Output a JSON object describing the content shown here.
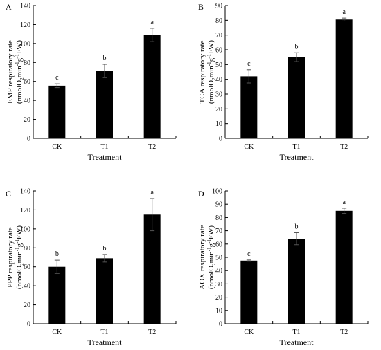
{
  "chart_data": [
    {
      "panel": "A",
      "type": "bar",
      "categories": [
        "CK",
        "T1",
        "T2"
      ],
      "values": [
        55.5,
        71,
        109
      ],
      "errors": [
        2,
        7,
        7
      ],
      "letters": [
        "c",
        "b",
        "a"
      ],
      "xlabel": "Treatment",
      "ylabel_line1": "EMP respiratory rate",
      "ylabel_line2": "(nmolO2min-1g-1FW)",
      "ylim": [
        0,
        140
      ],
      "yticks": [
        0,
        20,
        40,
        60,
        80,
        100,
        120,
        140
      ],
      "grid": false
    },
    {
      "panel": "B",
      "type": "bar",
      "categories": [
        "CK",
        "T1",
        "T2"
      ],
      "values": [
        42,
        55,
        80.5
      ],
      "errors": [
        4.5,
        3,
        1
      ],
      "letters": [
        "c",
        "b",
        "a"
      ],
      "xlabel": "Treatment",
      "ylabel_line1": "TCA respiratory rate",
      "ylabel_line2": "(nmolO2min-1g-1FW)",
      "ylim": [
        0,
        90
      ],
      "yticks": [
        0,
        10,
        20,
        30,
        40,
        50,
        60,
        70,
        80,
        90
      ],
      "grid": false
    },
    {
      "panel": "C",
      "type": "bar",
      "categories": [
        "CK",
        "T1",
        "T2"
      ],
      "values": [
        60,
        69,
        115
      ],
      "errors": [
        7,
        4,
        17
      ],
      "letters": [
        "b",
        "b",
        "a"
      ],
      "xlabel": "Treatment",
      "ylabel_line1": "PPP respiratory rate",
      "ylabel_line2": "(nmolO2min-1g-1FW)",
      "ylim": [
        0,
        140
      ],
      "yticks": [
        0,
        20,
        40,
        60,
        80,
        100,
        120,
        140
      ],
      "grid": false
    },
    {
      "panel": "D",
      "type": "bar",
      "categories": [
        "CK",
        "T1",
        "T2"
      ],
      "values": [
        47.5,
        64,
        85
      ],
      "errors": [
        0.5,
        4.5,
        2
      ],
      "letters": [
        "c",
        "b",
        "a"
      ],
      "xlabel": "Treatment",
      "ylabel_line1": "AOX respiratory rate",
      "ylabel_line2": "(nmolO2min-1g-1FW)",
      "ylim": [
        0,
        100
      ],
      "yticks": [
        0,
        10,
        20,
        30,
        40,
        50,
        60,
        70,
        80,
        90,
        100
      ],
      "grid": false
    }
  ]
}
